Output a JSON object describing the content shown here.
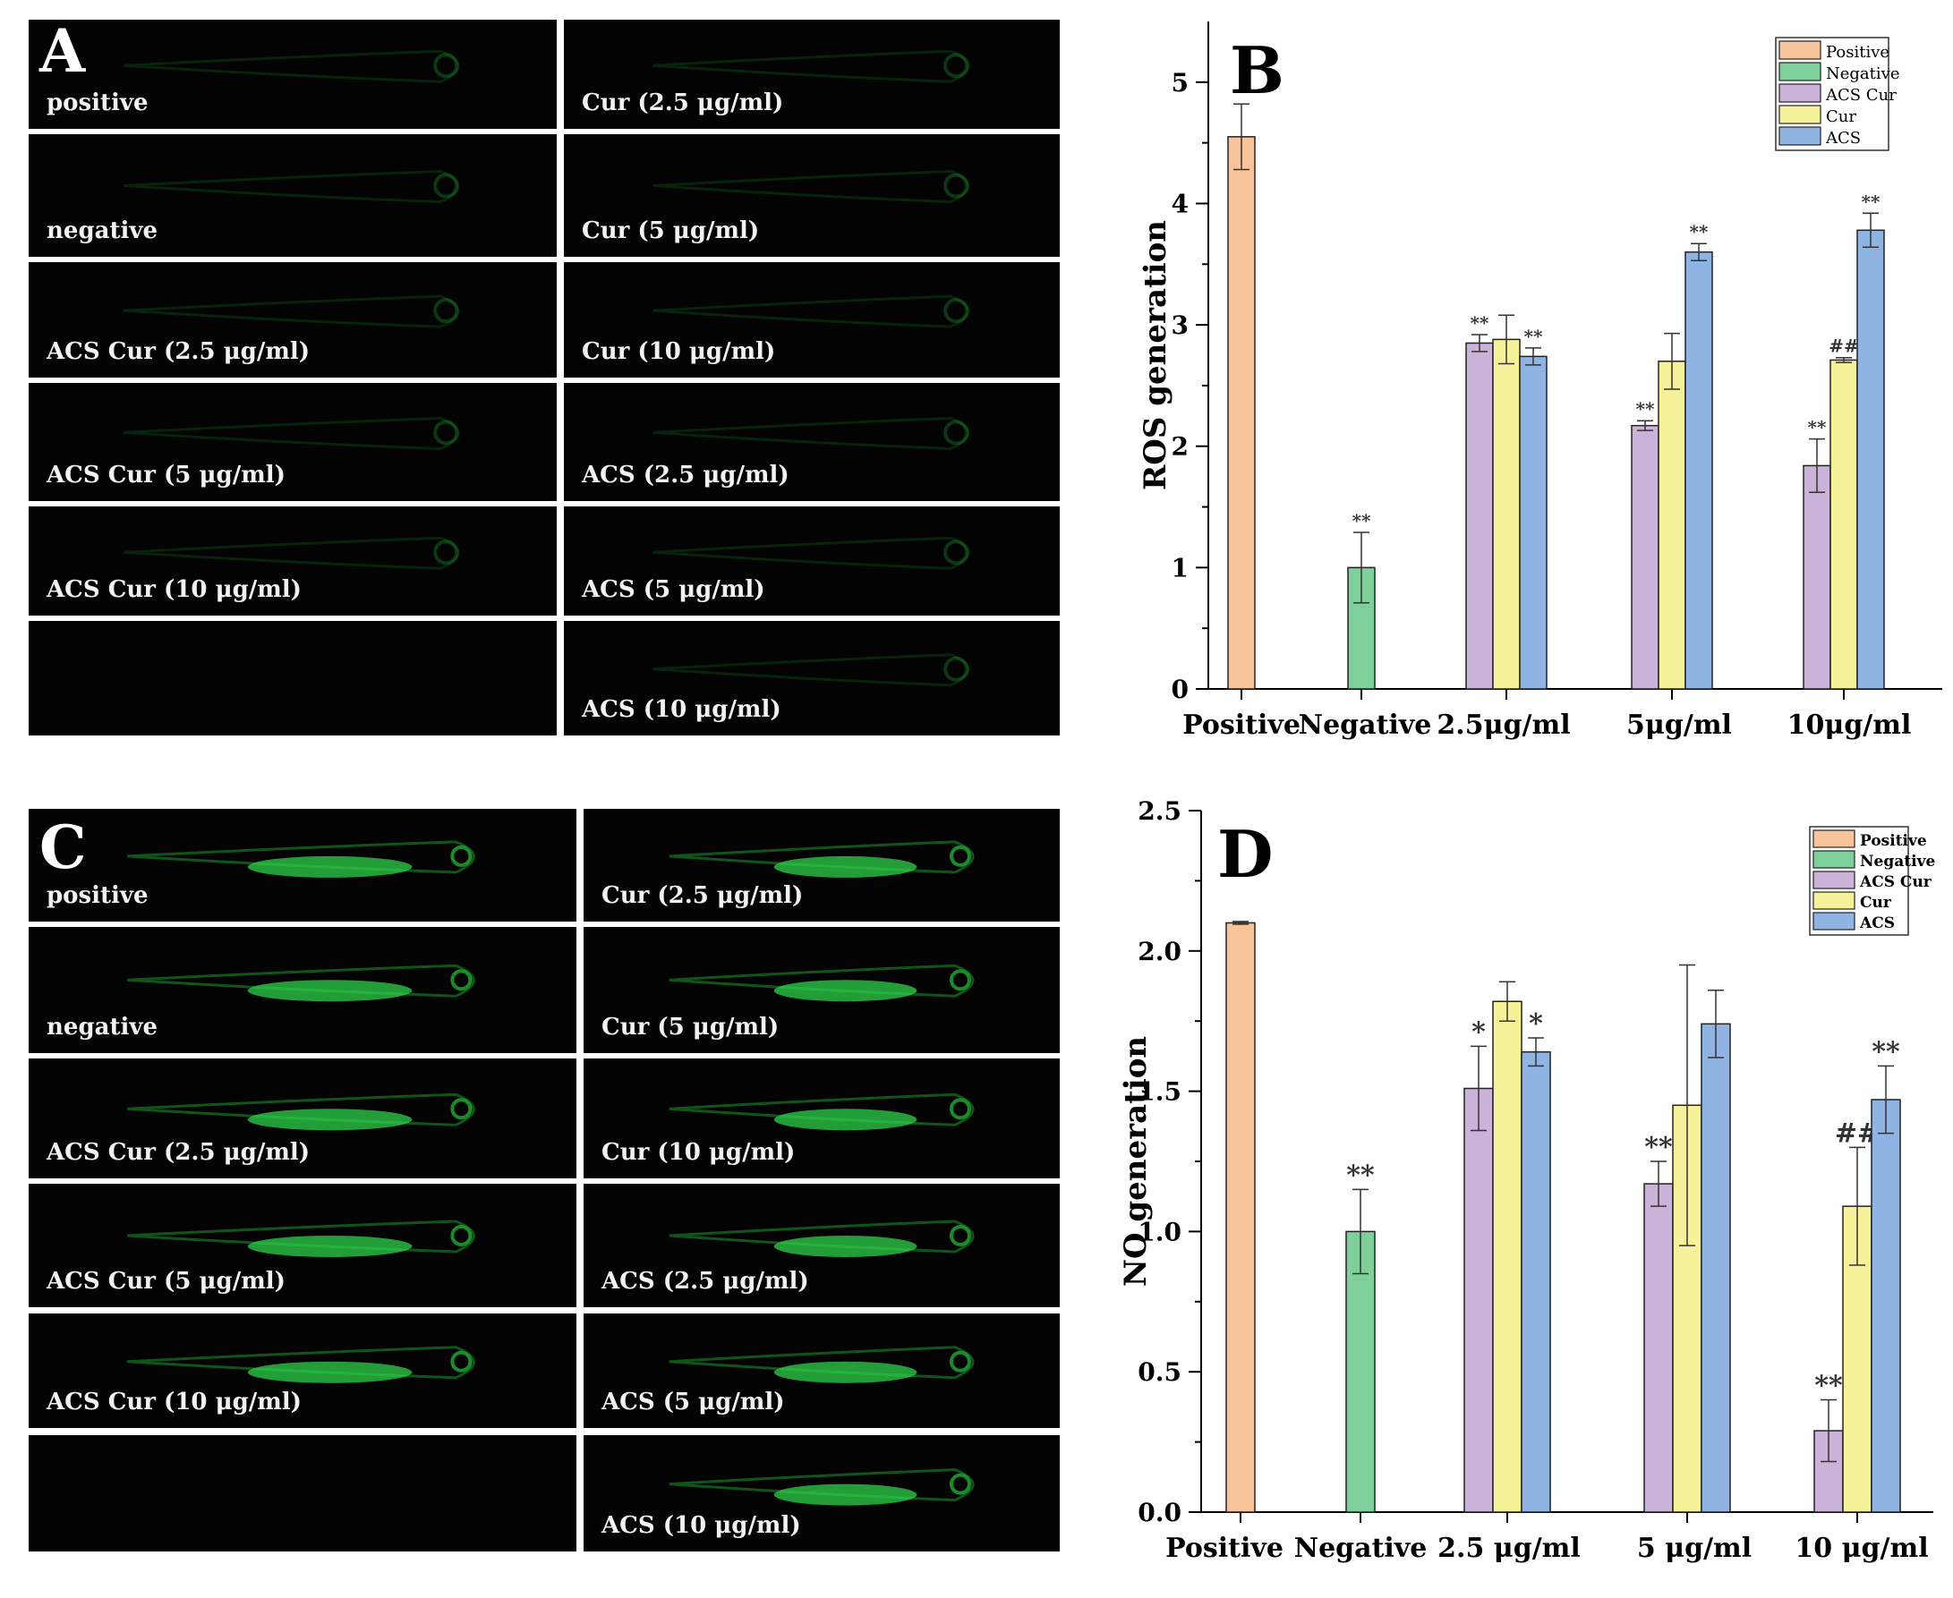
{
  "figure": {
    "panel_A": {
      "letter": "A",
      "tiles_left": [
        "positive",
        "negative",
        "ACS Cur (2.5 μg/ml)",
        "ACS Cur (5 μg/ml)",
        "ACS Cur (10 μg/ml)",
        ""
      ],
      "tiles_right": [
        "Cur (2.5 μg/ml)",
        "Cur (5 μg/ml)",
        "Cur (10 μg/ml)",
        "ACS (2.5 μg/ml)",
        "ACS (5 μg/ml)",
        "ACS (10 μg/ml)"
      ]
    },
    "panel_C": {
      "letter": "C",
      "tiles_left": [
        "positive",
        "negative",
        "ACS Cur (2.5 μg/ml)",
        "ACS Cur (5 μg/ml)",
        "ACS Cur (10 μg/ml)",
        ""
      ],
      "tiles_right": [
        "Cur (2.5 μg/ml)",
        "Cur (5 μg/ml)",
        "Cur (10 μg/ml)",
        "ACS (2.5 μg/ml)",
        "ACS (5 μg/ml)",
        "ACS (10 μg/ml)"
      ]
    }
  },
  "colors": {
    "Positive": "#f9c49a",
    "Negative": "#7fcf9b",
    "ACS Cur": "#cbb2d9",
    "Cur": "#f6f29a",
    "ACS": "#8fb3e2",
    "tile_bg": "#030303",
    "fish_glow": "#1e9a2e"
  },
  "chart_data": [
    {
      "type": "bar",
      "panel": "B",
      "ylabel": "ROS generation",
      "xlabel": "",
      "ylim": [
        0,
        5.5
      ],
      "yticks": [
        "0",
        "1",
        "2",
        "3",
        "4",
        "5"
      ],
      "categories": [
        "Positive",
        "Negative",
        "2.5μg/ml",
        "5μg/ml",
        "10μg/ml"
      ],
      "legend": [
        "Positive",
        "Negative",
        "ACS Cur",
        "Cur",
        "ACS"
      ],
      "legend_position": "top-right",
      "series": [
        {
          "name": "Positive",
          "values": [
            4.55,
            null,
            null,
            null,
            null
          ],
          "errors": [
            0.27,
            null,
            null,
            null,
            null
          ],
          "marks": [
            "",
            "",
            "",
            "",
            ""
          ]
        },
        {
          "name": "Negative",
          "values": [
            null,
            1.0,
            null,
            null,
            null
          ],
          "errors": [
            null,
            0.29,
            null,
            null,
            null
          ],
          "marks": [
            "",
            "**",
            "",
            "",
            ""
          ]
        },
        {
          "name": "ACS Cur",
          "values": [
            null,
            null,
            2.85,
            2.17,
            1.84
          ],
          "errors": [
            null,
            null,
            0.07,
            0.04,
            0.22
          ],
          "marks": [
            "",
            "",
            "**",
            "**",
            "**"
          ]
        },
        {
          "name": "Cur",
          "values": [
            null,
            null,
            2.88,
            2.7,
            2.71
          ],
          "errors": [
            null,
            null,
            0.2,
            0.23,
            0.02
          ],
          "marks": [
            "",
            "",
            "",
            "",
            "##"
          ]
        },
        {
          "name": "ACS",
          "values": [
            null,
            null,
            2.74,
            3.6,
            3.78
          ],
          "errors": [
            null,
            null,
            0.07,
            0.07,
            0.14
          ],
          "marks": [
            "",
            "",
            "**",
            "**",
            "**"
          ]
        }
      ]
    },
    {
      "type": "bar",
      "panel": "D",
      "ylabel": "NO generation",
      "xlabel": "",
      "ylim": [
        0,
        2.5
      ],
      "yticks": [
        "0.0",
        "0.5",
        "1.0",
        "1.5",
        "2.0",
        "2.5"
      ],
      "categories": [
        "Positive",
        "Negative",
        "2.5 μg/ml",
        "5 μg/ml",
        "10 μg/ml"
      ],
      "legend": [
        "Positive",
        "Negative",
        "ACS Cur",
        "Cur",
        "ACS"
      ],
      "legend_position": "top-right",
      "series": [
        {
          "name": "Positive",
          "values": [
            2.1,
            null,
            null,
            null,
            null
          ],
          "errors": [
            0.005,
            null,
            null,
            null,
            null
          ],
          "marks": [
            "",
            "",
            "",
            "",
            ""
          ]
        },
        {
          "name": "Negative",
          "values": [
            null,
            1.0,
            null,
            null,
            null
          ],
          "errors": [
            null,
            0.15,
            null,
            null,
            null
          ],
          "marks": [
            "",
            "**",
            "",
            "",
            ""
          ]
        },
        {
          "name": "ACS Cur",
          "values": [
            null,
            null,
            1.51,
            1.17,
            0.29
          ],
          "errors": [
            null,
            null,
            0.15,
            0.08,
            0.11
          ],
          "marks": [
            "",
            "",
            "*",
            "**",
            "**"
          ]
        },
        {
          "name": "Cur",
          "values": [
            null,
            null,
            1.82,
            1.45,
            1.09
          ],
          "errors": [
            null,
            null,
            0.07,
            0.5,
            0.21
          ],
          "marks": [
            "",
            "",
            "",
            "",
            "##"
          ]
        },
        {
          "name": "ACS",
          "values": [
            null,
            null,
            1.64,
            1.74,
            1.47
          ],
          "errors": [
            null,
            null,
            0.05,
            0.12,
            0.12
          ],
          "marks": [
            "",
            "",
            "*",
            "",
            "**"
          ]
        }
      ]
    }
  ]
}
